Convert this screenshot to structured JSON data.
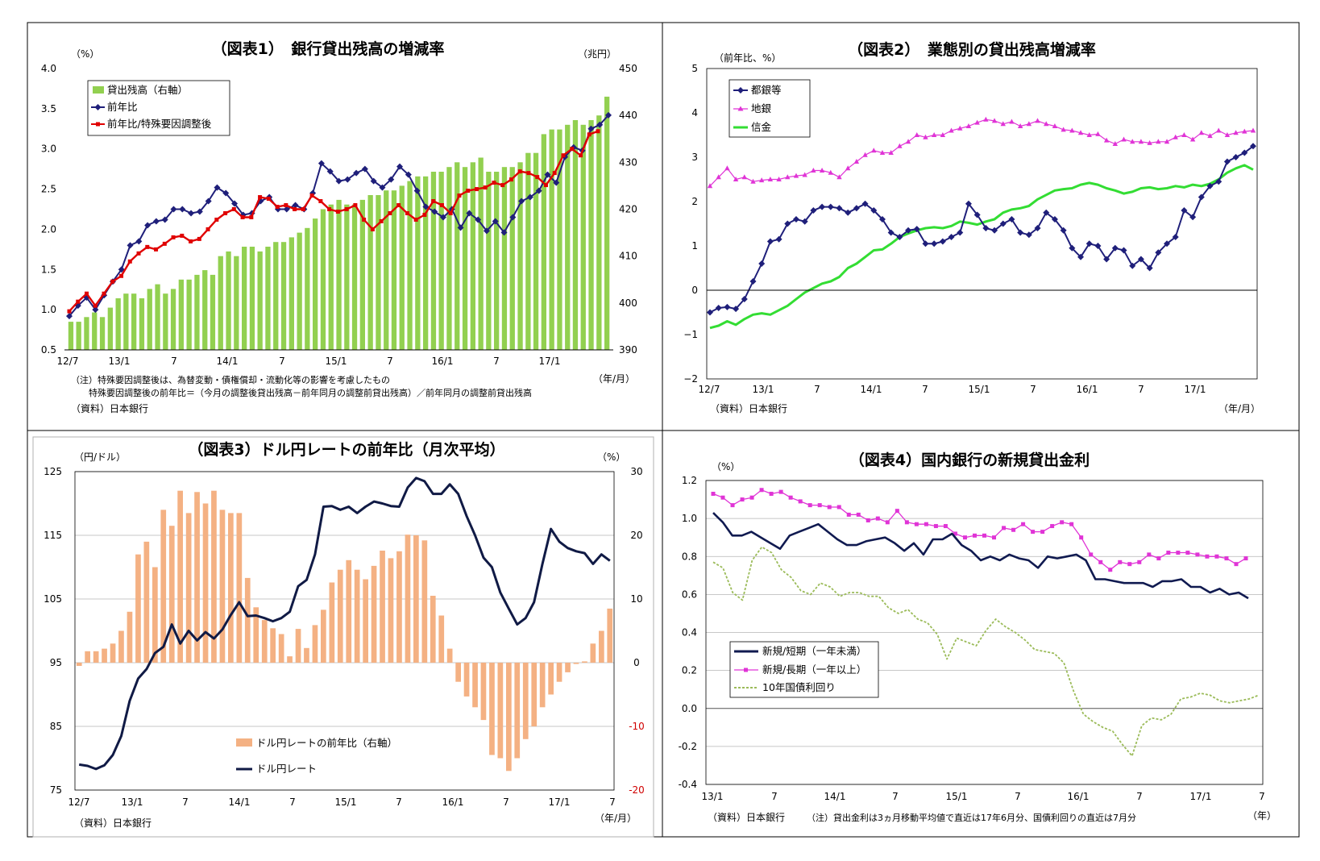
{
  "chart_data": [
    {
      "id": "c1",
      "type": "bar+line",
      "title": "（図表1）　銀行貸出残高の増減率",
      "y_left_unit": "（%）",
      "y_right_unit": "（兆円）",
      "x_unit": "（年/月）",
      "ylim_left": [
        0.5,
        4.0
      ],
      "ylim_right": [
        390,
        450
      ],
      "yticks_left": [
        "0.5",
        "1.0",
        "1.5",
        "2.0",
        "2.5",
        "3.0",
        "3.5",
        "4.0"
      ],
      "yticks_right": [
        "390",
        "400",
        "410",
        "420",
        "430",
        "440",
        "450"
      ],
      "xticks": [
        "12/7",
        "13/1",
        "7",
        "14/1",
        "7",
        "15/1",
        "7",
        "16/1",
        "7",
        "17/1"
      ],
      "note1": "（注）特殊要因調整後は、為替変動・債権償却・流動化等の影響を考慮したもの",
      "note2": "特殊要因調整後の前年比＝（今月の調整後貸出残高－前年同月の調整前貸出残高）／前年同月の調整前貸出残高",
      "source": "（資料）日本銀行",
      "series": [
        {
          "name": "貸出残高（右軸）",
          "color": "#92d050",
          "axis": "right",
          "values": [
            396,
            396,
            397,
            398,
            397,
            399,
            401,
            402,
            402,
            401,
            403,
            404,
            402,
            403,
            405,
            405,
            406,
            407,
            406,
            410,
            411,
            410,
            412,
            412,
            411,
            412,
            413,
            413,
            414,
            415,
            416,
            418,
            420,
            421,
            422,
            421,
            421,
            422,
            423,
            423,
            424,
            424,
            425,
            426,
            427,
            427,
            428,
            428,
            429,
            430,
            429,
            430,
            431,
            428,
            428,
            429,
            429,
            430,
            432,
            432,
            436,
            437,
            437,
            438,
            439,
            438,
            439,
            440,
            444
          ]
        },
        {
          "name": "前年比",
          "color": "#1f1f7a",
          "axis": "left",
          "values": [
            0.92,
            1.05,
            1.15,
            1.0,
            1.18,
            1.35,
            1.5,
            1.8,
            1.85,
            2.05,
            2.1,
            2.12,
            2.25,
            2.25,
            2.2,
            2.22,
            2.35,
            2.52,
            2.45,
            2.32,
            2.18,
            2.2,
            2.35,
            2.4,
            2.25,
            2.25,
            2.3,
            2.25,
            2.45,
            2.82,
            2.72,
            2.6,
            2.62,
            2.7,
            2.75,
            2.6,
            2.52,
            2.62,
            2.78,
            2.68,
            2.48,
            2.28,
            2.22,
            2.15,
            2.25,
            2.02,
            2.2,
            2.12,
            1.98,
            2.1,
            1.96,
            2.15,
            2.35,
            2.4,
            2.48,
            2.68,
            2.58,
            2.9,
            3.02,
            2.98,
            3.25,
            3.3,
            3.42
          ]
        },
        {
          "name": "前年比/特殊要因調整後",
          "color": "#e00000",
          "axis": "left",
          "values": [
            0.98,
            1.1,
            1.2,
            1.05,
            1.2,
            1.35,
            1.42,
            1.6,
            1.7,
            1.78,
            1.75,
            1.82,
            1.9,
            1.92,
            1.85,
            1.88,
            2.0,
            2.12,
            2.2,
            2.25,
            2.15,
            2.15,
            2.4,
            2.38,
            2.28,
            2.3,
            2.25,
            2.25,
            2.42,
            2.35,
            2.25,
            2.22,
            2.25,
            2.3,
            2.12,
            2.0,
            2.1,
            2.2,
            2.3,
            2.2,
            2.12,
            2.18,
            2.35,
            2.3,
            2.2,
            2.42,
            2.48,
            2.5,
            2.52,
            2.58,
            2.55,
            2.62,
            2.72,
            2.7,
            2.65,
            2.55,
            2.7,
            2.92,
            3.0,
            2.92,
            3.18,
            3.22
          ]
        }
      ]
    },
    {
      "id": "c2",
      "type": "line",
      "title": "（図表2）　業態別の貸出残高増減率",
      "y_unit": "（前年比、%）",
      "x_unit": "（年/月）",
      "ylim": [
        -2,
        5
      ],
      "yticks": [
        "−2",
        "−1",
        "0",
        "1",
        "2",
        "3",
        "4",
        "5"
      ],
      "xticks": [
        "12/7",
        "13/1",
        "7",
        "14/1",
        "7",
        "15/1",
        "7",
        "16/1",
        "7",
        "17/1"
      ],
      "source": "（資料）日本銀行",
      "series": [
        {
          "name": "都銀等",
          "color": "#1f1f7a",
          "values": [
            -0.5,
            -0.4,
            -0.38,
            -0.42,
            -0.2,
            0.2,
            0.6,
            1.1,
            1.15,
            1.5,
            1.6,
            1.55,
            1.8,
            1.88,
            1.88,
            1.85,
            1.75,
            1.85,
            1.95,
            1.8,
            1.6,
            1.3,
            1.2,
            1.35,
            1.38,
            1.05,
            1.05,
            1.1,
            1.2,
            1.3,
            1.95,
            1.7,
            1.4,
            1.35,
            1.5,
            1.6,
            1.3,
            1.25,
            1.4,
            1.75,
            1.6,
            1.35,
            0.95,
            0.75,
            1.05,
            1.0,
            0.7,
            0.95,
            0.9,
            0.55,
            0.7,
            0.5,
            0.85,
            1.05,
            1.2,
            1.8,
            1.65,
            2.1,
            2.35,
            2.45,
            2.9,
            3.0,
            3.1,
            3.25
          ]
        },
        {
          "name": "地銀",
          "color": "#e034d6",
          "values": [
            2.35,
            2.55,
            2.75,
            2.5,
            2.55,
            2.45,
            2.48,
            2.5,
            2.5,
            2.55,
            2.58,
            2.6,
            2.7,
            2.7,
            2.65,
            2.55,
            2.75,
            2.9,
            3.05,
            3.15,
            3.1,
            3.1,
            3.25,
            3.35,
            3.5,
            3.45,
            3.5,
            3.5,
            3.6,
            3.65,
            3.7,
            3.78,
            3.85,
            3.82,
            3.75,
            3.8,
            3.7,
            3.75,
            3.82,
            3.75,
            3.7,
            3.62,
            3.6,
            3.55,
            3.5,
            3.52,
            3.38,
            3.3,
            3.4,
            3.35,
            3.35,
            3.32,
            3.35,
            3.35,
            3.45,
            3.5,
            3.4,
            3.55,
            3.48,
            3.6,
            3.5,
            3.55,
            3.58,
            3.6
          ]
        },
        {
          "name": "信金",
          "color": "#33dd33",
          "values": [
            -0.85,
            -0.8,
            -0.7,
            -0.78,
            -0.65,
            -0.55,
            -0.52,
            -0.55,
            -0.45,
            -0.35,
            -0.2,
            -0.05,
            0.05,
            0.15,
            0.2,
            0.3,
            0.5,
            0.6,
            0.75,
            0.9,
            0.92,
            1.05,
            1.2,
            1.28,
            1.35,
            1.4,
            1.42,
            1.4,
            1.45,
            1.55,
            1.52,
            1.48,
            1.55,
            1.6,
            1.75,
            1.82,
            1.85,
            1.9,
            2.05,
            2.15,
            2.25,
            2.28,
            2.3,
            2.38,
            2.42,
            2.38,
            2.3,
            2.25,
            2.18,
            2.22,
            2.3,
            2.32,
            2.28,
            2.3,
            2.35,
            2.32,
            2.38,
            2.35,
            2.4,
            2.5,
            2.65,
            2.75,
            2.82,
            2.72
          ]
        }
      ]
    },
    {
      "id": "c3",
      "type": "bar+line",
      "title": "（図表3）ドル円レートの前年比（月次平均）",
      "y_left_unit": "（円/ドル）",
      "y_right_unit": "（%）",
      "x_unit": "（年/月）",
      "ylim_left": [
        75,
        125
      ],
      "ylim_right": [
        -20,
        30
      ],
      "yticks_left": [
        "75",
        "85",
        "95",
        "105",
        "115",
        "125"
      ],
      "yticks_right": [
        "-20",
        "-10",
        "0",
        "10",
        "20",
        "30"
      ],
      "xticks": [
        "12/7",
        "13/1",
        "7",
        "14/1",
        "7",
        "15/1",
        "7",
        "16/1",
        "7",
        "17/1",
        "7"
      ],
      "source": "（資料）日本銀行",
      "series": [
        {
          "name": "ドル円レートの前年比（右軸）",
          "color": "#f4b183",
          "axis": "right",
          "values": [
            -0.5,
            1.8,
            1.8,
            2.2,
            3,
            5,
            8,
            17,
            19,
            15,
            24,
            21.5,
            27,
            23.5,
            26.8,
            25,
            27,
            24,
            23.5,
            23.5,
            13.3,
            8.7,
            6.7,
            5.4,
            4.5,
            1,
            5.3,
            2.3,
            5.9,
            8.3,
            12.6,
            14.6,
            16.1,
            14.6,
            13.1,
            15.2,
            17.6,
            16.4,
            17.5,
            20.1,
            20,
            19.2,
            10.5,
            7.4,
            2.2,
            -3,
            -5.3,
            -7,
            -9,
            -14.5,
            -15,
            -17,
            -15,
            -12,
            -10,
            -7,
            -5,
            -3,
            -1.5,
            -0.2,
            0.2,
            3,
            5,
            8.5
          ]
        },
        {
          "name": "ドル円レート",
          "color": "#101a45",
          "axis": "left",
          "values": [
            79,
            78.8,
            78.3,
            78.9,
            80.5,
            83.5,
            89,
            92.5,
            94,
            96.5,
            97.5,
            101,
            98,
            100,
            98.5,
            99.8,
            98.8,
            100.2,
            102.5,
            104.5,
            102.3,
            102.4,
            102,
            101.5,
            102,
            103,
            107,
            108,
            112,
            119.5,
            119.6,
            119,
            119.5,
            118.5,
            119.5,
            120.3,
            120,
            119.6,
            119.5,
            122.5,
            124,
            123.5,
            121.5,
            121.5,
            123,
            121.5,
            118,
            115,
            111.5,
            110,
            106,
            103.5,
            101,
            102,
            104.5,
            110.5,
            116,
            114,
            113,
            112.5,
            112.2,
            110.5,
            112,
            111
          ]
        }
      ]
    },
    {
      "id": "c4",
      "type": "line",
      "title": "（図表4）国内銀行の新規貸出金利",
      "y_unit": "（%）",
      "x_unit": "（年）",
      "ylim": [
        -0.4,
        1.2
      ],
      "yticks": [
        "-0.4",
        "-0.2",
        "0.0",
        "0.2",
        "0.4",
        "0.6",
        "0.8",
        "1.0",
        "1.2"
      ],
      "xticks": [
        "13/1",
        "7",
        "14/1",
        "7",
        "15/1",
        "7",
        "16/1",
        "7",
        "17/1",
        "7"
      ],
      "source": "（資料）日本銀行",
      "note": "（注）貸出金利は3ヵ月移動平均値で直近は17年6月分、国債利回りの直近は7月分",
      "series": [
        {
          "name": "新規/短期（一年未満）",
          "color": "#101a50",
          "values": [
            1.03,
            0.98,
            0.91,
            0.91,
            0.93,
            0.9,
            0.87,
            0.84,
            0.91,
            0.93,
            0.95,
            0.97,
            0.93,
            0.89,
            0.86,
            0.86,
            0.88,
            0.89,
            0.9,
            0.87,
            0.83,
            0.87,
            0.81,
            0.89,
            0.89,
            0.92,
            0.86,
            0.83,
            0.78,
            0.8,
            0.78,
            0.81,
            0.79,
            0.78,
            0.74,
            0.8,
            0.79,
            0.8,
            0.81,
            0.78,
            0.68,
            0.68,
            0.67,
            0.66,
            0.66,
            0.66,
            0.64,
            0.67,
            0.67,
            0.68,
            0.64,
            0.64,
            0.61,
            0.63,
            0.6,
            0.61,
            0.58
          ]
        },
        {
          "name": "新規/長期（一年以上）",
          "color": "#e034d6",
          "values": [
            1.13,
            1.11,
            1.07,
            1.1,
            1.11,
            1.15,
            1.13,
            1.14,
            1.11,
            1.09,
            1.07,
            1.07,
            1.06,
            1.06,
            1.02,
            1.02,
            0.99,
            1.0,
            0.98,
            1.04,
            0.98,
            0.97,
            0.97,
            0.96,
            0.96,
            0.92,
            0.9,
            0.91,
            0.91,
            0.9,
            0.95,
            0.94,
            0.97,
            0.93,
            0.93,
            0.96,
            0.98,
            0.97,
            0.9,
            0.81,
            0.77,
            0.73,
            0.77,
            0.76,
            0.77,
            0.81,
            0.79,
            0.82,
            0.82,
            0.82,
            0.81,
            0.8,
            0.8,
            0.79,
            0.76,
            0.79
          ]
        },
        {
          "name": "10年国債利回り",
          "color": "#9bbb59",
          "dashed": true,
          "values": [
            0.77,
            0.74,
            0.61,
            0.57,
            0.78,
            0.85,
            0.82,
            0.73,
            0.69,
            0.62,
            0.6,
            0.66,
            0.64,
            0.59,
            0.61,
            0.61,
            0.59,
            0.59,
            0.53,
            0.5,
            0.52,
            0.47,
            0.45,
            0.39,
            0.26,
            0.37,
            0.35,
            0.33,
            0.41,
            0.47,
            0.43,
            0.4,
            0.36,
            0.31,
            0.3,
            0.29,
            0.24,
            0.09,
            -0.03,
            -0.07,
            -0.1,
            -0.12,
            -0.19,
            -0.25,
            -0.09,
            -0.05,
            -0.06,
            -0.03,
            0.05,
            0.06,
            0.08,
            0.07,
            0.04,
            0.03,
            0.04,
            0.05,
            0.07
          ]
        }
      ]
    }
  ]
}
